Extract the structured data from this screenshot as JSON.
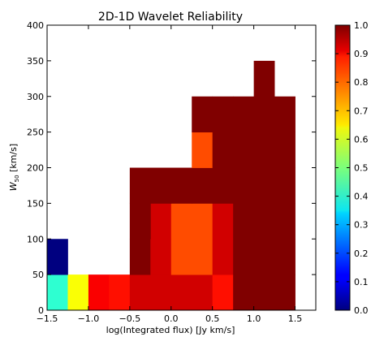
{
  "chart_data": {
    "type": "heatmap",
    "title": "2D-1D Wavelet Reliability",
    "xlabel": "log(Integrated flux) [Jy km/s]",
    "ylabel": "W",
    "ylabel_sub": "50",
    "ylabel_unit": " [km/s]",
    "xlim": [
      -1.5,
      1.75
    ],
    "ylim": [
      0,
      400
    ],
    "x_ticks": [
      -1.5,
      -1.0,
      -0.5,
      0.0,
      0.5,
      1.0,
      1.5
    ],
    "x_tick_labels": [
      "−1.5",
      "−1.0",
      "−0.5",
      "0.0",
      "0.5",
      "1.0",
      "1.5"
    ],
    "y_ticks": [
      0,
      50,
      100,
      150,
      200,
      250,
      300,
      350,
      400
    ],
    "y_tick_labels": [
      "0",
      "50",
      "100",
      "150",
      "200",
      "250",
      "300",
      "350",
      "400"
    ],
    "colorbar": {
      "colormap": "jet",
      "range": [
        0.0,
        1.0
      ],
      "ticks": [
        0.0,
        0.1,
        0.2,
        0.3,
        0.4,
        0.5,
        0.6,
        0.7,
        0.8,
        0.9,
        1.0
      ],
      "tick_labels": [
        "0.0",
        "0.1",
        "0.2",
        "0.3",
        "0.4",
        "0.5",
        "0.6",
        "0.7",
        "0.8",
        "0.9",
        "1.0"
      ]
    },
    "bin_width_x": 0.25,
    "bin_height_y": 50,
    "cells": [
      {
        "x": -1.5,
        "y": 0,
        "value": 0.42
      },
      {
        "x": -1.25,
        "y": 0,
        "value": 0.62
      },
      {
        "x": -1.0,
        "y": 0,
        "value": 0.88
      },
      {
        "x": -0.75,
        "y": 0,
        "value": 0.86
      },
      {
        "x": -0.5,
        "y": 0,
        "value": 0.92
      },
      {
        "x": -0.25,
        "y": 0,
        "value": 0.92
      },
      {
        "x": 0.0,
        "y": 0,
        "value": 0.92
      },
      {
        "x": 0.25,
        "y": 0,
        "value": 0.92
      },
      {
        "x": 0.5,
        "y": 0,
        "value": 0.86
      },
      {
        "x": 0.75,
        "y": 0,
        "value": 1.0
      },
      {
        "x": 1.0,
        "y": 0,
        "value": 1.0
      },
      {
        "x": 1.25,
        "y": 0,
        "value": 1.0
      },
      {
        "x": -1.5,
        "y": 50,
        "value": 0.0
      },
      {
        "x": -0.5,
        "y": 50,
        "value": 1.0
      },
      {
        "x": -0.25,
        "y": 50,
        "value": 0.92
      },
      {
        "x": 0.0,
        "y": 50,
        "value": 0.8
      },
      {
        "x": 0.25,
        "y": 50,
        "value": 0.8
      },
      {
        "x": 0.5,
        "y": 50,
        "value": 0.92
      },
      {
        "x": 0.75,
        "y": 50,
        "value": 1.0
      },
      {
        "x": 1.0,
        "y": 50,
        "value": 1.0
      },
      {
        "x": 1.25,
        "y": 50,
        "value": 1.0
      },
      {
        "x": -0.25,
        "y": 100,
        "value": 0.92
      },
      {
        "x": 0.0,
        "y": 100,
        "value": 0.8
      },
      {
        "x": 0.25,
        "y": 100,
        "value": 0.8
      },
      {
        "x": 0.5,
        "y": 100,
        "value": 0.92
      },
      {
        "x": -0.5,
        "y": 100,
        "value": 1.0
      },
      {
        "x": 0.75,
        "y": 100,
        "value": 1.0
      },
      {
        "x": 1.0,
        "y": 100,
        "value": 1.0
      },
      {
        "x": 1.25,
        "y": 100,
        "value": 1.0
      },
      {
        "x": -0.5,
        "y": 150,
        "value": 1.0
      },
      {
        "x": -0.25,
        "y": 150,
        "value": 1.0
      },
      {
        "x": 0.0,
        "y": 150,
        "value": 1.0
      },
      {
        "x": 0.25,
        "y": 150,
        "value": 1.0
      },
      {
        "x": 0.5,
        "y": 150,
        "value": 1.0
      },
      {
        "x": 0.75,
        "y": 150,
        "value": 1.0
      },
      {
        "x": 1.0,
        "y": 150,
        "value": 1.0
      },
      {
        "x": 1.25,
        "y": 150,
        "value": 1.0
      },
      {
        "x": 0.25,
        "y": 200,
        "value": 0.8
      },
      {
        "x": 0.5,
        "y": 200,
        "value": 1.0
      },
      {
        "x": 0.75,
        "y": 200,
        "value": 1.0
      },
      {
        "x": 1.0,
        "y": 200,
        "value": 1.0
      },
      {
        "x": 1.25,
        "y": 200,
        "value": 1.0
      },
      {
        "x": 0.25,
        "y": 250,
        "value": 1.0
      },
      {
        "x": 0.5,
        "y": 250,
        "value": 1.0
      },
      {
        "x": 0.75,
        "y": 250,
        "value": 1.0
      },
      {
        "x": 1.0,
        "y": 250,
        "value": 1.0
      },
      {
        "x": 1.25,
        "y": 250,
        "value": 1.0
      },
      {
        "x": 1.0,
        "y": 300,
        "value": 1.0
      }
    ],
    "grid": false
  }
}
